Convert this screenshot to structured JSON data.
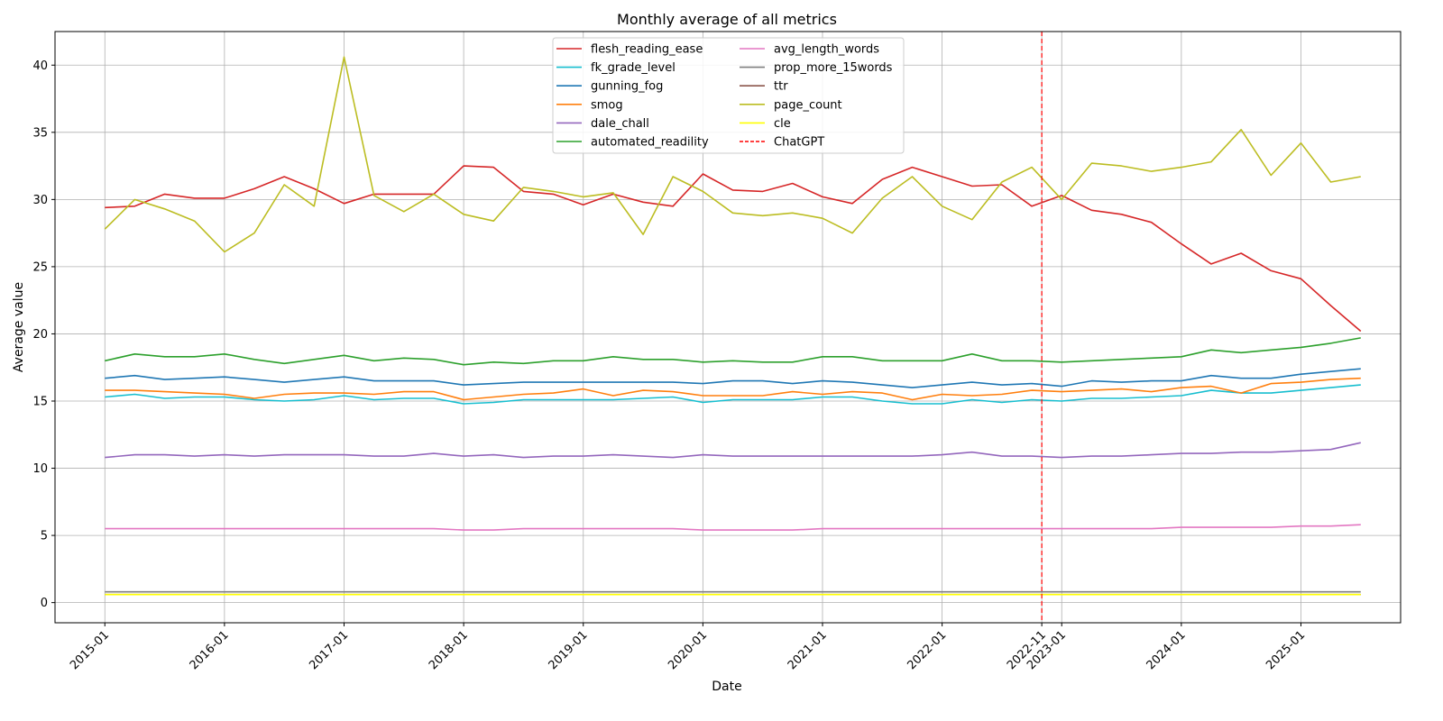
{
  "chart_data": {
    "type": "line",
    "title": "Monthly average of all metrics",
    "xlabel": "Date",
    "ylabel": "Average value",
    "grid": true,
    "legend_position": "top-center",
    "legend_columns": 2,
    "xlim": [
      "2014-08",
      "2025-11"
    ],
    "ylim": [
      -1.5,
      42.5
    ],
    "yticks": [
      0,
      5,
      10,
      15,
      20,
      25,
      30,
      35,
      40
    ],
    "xticks": [
      "2015-01",
      "2016-01",
      "2017-01",
      "2018-01",
      "2019-01",
      "2020-01",
      "2021-01",
      "2022-01",
      "2022-11",
      "2023-01",
      "2024-01",
      "2025-01"
    ],
    "x": [
      "2015-01",
      "2015-04",
      "2015-07",
      "2015-10",
      "2016-01",
      "2016-04",
      "2016-07",
      "2016-10",
      "2017-01",
      "2017-04",
      "2017-07",
      "2017-10",
      "2018-01",
      "2018-04",
      "2018-07",
      "2018-10",
      "2019-01",
      "2019-04",
      "2019-07",
      "2019-10",
      "2020-01",
      "2020-04",
      "2020-07",
      "2020-10",
      "2021-01",
      "2021-04",
      "2021-07",
      "2021-10",
      "2022-01",
      "2022-04",
      "2022-07",
      "2022-10",
      "2023-01",
      "2023-04",
      "2023-07",
      "2023-10",
      "2024-01",
      "2024-04",
      "2024-07",
      "2024-10",
      "2025-01",
      "2025-04",
      "2025-07"
    ],
    "series": [
      {
        "name": "flesh_reading_ease",
        "color": "#d62728",
        "values": [
          29.4,
          29.5,
          30.4,
          30.1,
          30.1,
          30.8,
          31.7,
          30.8,
          29.7,
          30.4,
          30.4,
          30.4,
          32.5,
          32.4,
          30.6,
          30.4,
          29.6,
          30.4,
          29.8,
          29.5,
          31.9,
          30.7,
          30.6,
          31.2,
          30.2,
          29.7,
          31.5,
          32.4,
          31.7,
          31.0,
          31.1,
          29.5,
          30.3,
          29.2,
          28.9,
          28.3,
          26.7,
          25.2,
          26.0,
          24.7,
          24.1,
          22.1,
          20.2
        ]
      },
      {
        "name": "fk_grade_level",
        "color": "#17becf",
        "values": [
          15.3,
          15.5,
          15.2,
          15.3,
          15.3,
          15.1,
          15.0,
          15.1,
          15.4,
          15.1,
          15.2,
          15.2,
          14.8,
          14.9,
          15.1,
          15.1,
          15.1,
          15.1,
          15.2,
          15.3,
          14.9,
          15.1,
          15.1,
          15.1,
          15.3,
          15.3,
          15.0,
          14.8,
          14.8,
          15.1,
          14.9,
          15.1,
          15.0,
          15.2,
          15.2,
          15.3,
          15.4,
          15.8,
          15.6,
          15.6,
          15.8,
          16.0,
          16.2
        ]
      },
      {
        "name": "gunning_fog",
        "color": "#1f77b4",
        "values": [
          16.7,
          16.9,
          16.6,
          16.7,
          16.8,
          16.6,
          16.4,
          16.6,
          16.8,
          16.5,
          16.5,
          16.5,
          16.2,
          16.3,
          16.4,
          16.4,
          16.4,
          16.4,
          16.4,
          16.4,
          16.3,
          16.5,
          16.5,
          16.3,
          16.5,
          16.4,
          16.2,
          16.0,
          16.2,
          16.4,
          16.2,
          16.3,
          16.1,
          16.5,
          16.4,
          16.5,
          16.5,
          16.9,
          16.7,
          16.7,
          17.0,
          17.2,
          17.4
        ]
      },
      {
        "name": "smog",
        "color": "#ff7f0e",
        "values": [
          15.8,
          15.8,
          15.7,
          15.6,
          15.5,
          15.2,
          15.5,
          15.6,
          15.6,
          15.5,
          15.7,
          15.7,
          15.1,
          15.3,
          15.5,
          15.6,
          15.9,
          15.4,
          15.8,
          15.7,
          15.4,
          15.4,
          15.4,
          15.7,
          15.5,
          15.7,
          15.6,
          15.1,
          15.5,
          15.4,
          15.5,
          15.8,
          15.7,
          15.8,
          15.9,
          15.7,
          16.0,
          16.1,
          15.6,
          16.3,
          16.4,
          16.6,
          16.7
        ]
      },
      {
        "name": "dale_chall",
        "color": "#9467bd",
        "values": [
          10.8,
          11.0,
          11.0,
          10.9,
          11.0,
          10.9,
          11.0,
          11.0,
          11.0,
          10.9,
          10.9,
          11.1,
          10.9,
          11.0,
          10.8,
          10.9,
          10.9,
          11.0,
          10.9,
          10.8,
          11.0,
          10.9,
          10.9,
          10.9,
          10.9,
          10.9,
          10.9,
          10.9,
          11.0,
          11.2,
          10.9,
          10.9,
          10.8,
          10.9,
          10.9,
          11.0,
          11.1,
          11.1,
          11.2,
          11.2,
          11.3,
          11.4,
          11.9
        ]
      },
      {
        "name": "automated_readility",
        "color": "#2ca02c",
        "values": [
          18.0,
          18.5,
          18.3,
          18.3,
          18.5,
          18.1,
          17.8,
          18.1,
          18.4,
          18.0,
          18.2,
          18.1,
          17.7,
          17.9,
          17.8,
          18.0,
          18.0,
          18.3,
          18.1,
          18.1,
          17.9,
          18.0,
          17.9,
          17.9,
          18.3,
          18.3,
          18.0,
          18.0,
          18.0,
          18.5,
          18.0,
          18.0,
          17.9,
          18.0,
          18.1,
          18.2,
          18.3,
          18.8,
          18.6,
          18.8,
          19.0,
          19.3,
          19.7
        ]
      },
      {
        "name": "avg_length_words",
        "color": "#e377c2",
        "values": [
          5.5,
          5.5,
          5.5,
          5.5,
          5.5,
          5.5,
          5.5,
          5.5,
          5.5,
          5.5,
          5.5,
          5.5,
          5.4,
          5.4,
          5.5,
          5.5,
          5.5,
          5.5,
          5.5,
          5.5,
          5.4,
          5.4,
          5.4,
          5.4,
          5.5,
          5.5,
          5.5,
          5.5,
          5.5,
          5.5,
          5.5,
          5.5,
          5.5,
          5.5,
          5.5,
          5.5,
          5.6,
          5.6,
          5.6,
          5.6,
          5.7,
          5.7,
          5.8
        ]
      },
      {
        "name": "prop_more_15words",
        "color": "#7f7f7f",
        "values": [
          0.8,
          0.8,
          0.8,
          0.8,
          0.8,
          0.8,
          0.8,
          0.8,
          0.8,
          0.8,
          0.8,
          0.8,
          0.8,
          0.8,
          0.8,
          0.8,
          0.8,
          0.8,
          0.8,
          0.8,
          0.8,
          0.8,
          0.8,
          0.8,
          0.8,
          0.8,
          0.8,
          0.8,
          0.8,
          0.8,
          0.8,
          0.8,
          0.8,
          0.8,
          0.8,
          0.8,
          0.8,
          0.8,
          0.8,
          0.8,
          0.8,
          0.8,
          0.8
        ]
      },
      {
        "name": "ttr",
        "color": "#8c564b",
        "values": [
          0.6,
          0.6,
          0.6,
          0.6,
          0.6,
          0.6,
          0.6,
          0.6,
          0.6,
          0.6,
          0.6,
          0.6,
          0.6,
          0.6,
          0.6,
          0.6,
          0.6,
          0.6,
          0.6,
          0.6,
          0.6,
          0.6,
          0.6,
          0.6,
          0.6,
          0.6,
          0.6,
          0.6,
          0.6,
          0.6,
          0.6,
          0.6,
          0.6,
          0.6,
          0.6,
          0.6,
          0.6,
          0.6,
          0.6,
          0.6,
          0.6,
          0.6,
          0.6
        ]
      },
      {
        "name": "page_count",
        "color": "#bcbd22",
        "values": [
          27.8,
          30.0,
          29.3,
          28.4,
          26.1,
          27.5,
          31.1,
          29.5,
          40.6,
          30.3,
          29.1,
          30.4,
          28.9,
          28.4,
          30.9,
          30.6,
          30.2,
          30.5,
          27.4,
          31.7,
          30.6,
          29.0,
          28.8,
          29.0,
          28.6,
          27.5,
          30.1,
          31.7,
          29.5,
          28.5,
          31.3,
          32.4,
          30.0,
          32.7,
          32.5,
          32.1,
          32.4,
          32.8,
          35.2,
          31.8,
          34.2,
          31.3,
          31.7
        ]
      },
      {
        "name": "cle",
        "color": "#ffff00",
        "values": [
          0.6,
          0.6,
          0.6,
          0.6,
          0.6,
          0.6,
          0.6,
          0.6,
          0.6,
          0.6,
          0.6,
          0.6,
          0.6,
          0.6,
          0.6,
          0.6,
          0.6,
          0.6,
          0.6,
          0.6,
          0.6,
          0.6,
          0.6,
          0.6,
          0.6,
          0.6,
          0.6,
          0.6,
          0.6,
          0.6,
          0.6,
          0.6,
          0.6,
          0.6,
          0.6,
          0.6,
          0.6,
          0.6,
          0.6,
          0.6,
          0.6,
          0.6,
          0.6
        ]
      }
    ],
    "annotations": [
      {
        "type": "vline",
        "x": "2022-11",
        "label": "ChatGPT",
        "color": "#ff0000",
        "style": "dashed"
      }
    ]
  }
}
